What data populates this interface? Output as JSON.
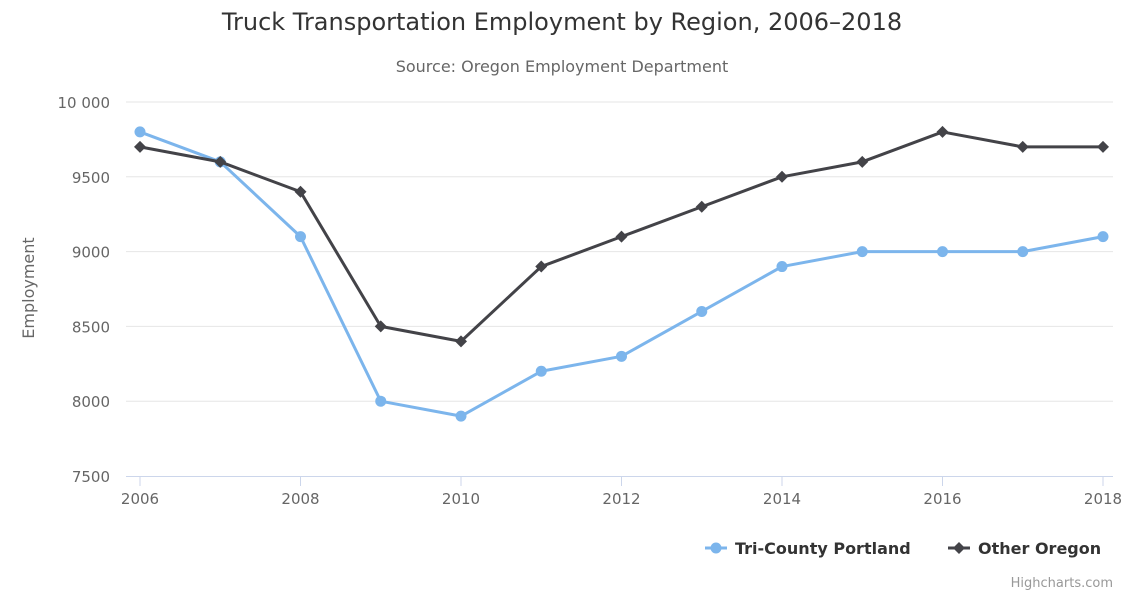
{
  "chart_data": {
    "type": "line",
    "title": "Truck Transportation Employment by Region, 2006–2018",
    "subtitle": "Source: Oregon Employment Department",
    "ylabel": "Employment",
    "xlabel": "",
    "x": [
      2006,
      2007,
      2008,
      2009,
      2010,
      2011,
      2012,
      2013,
      2014,
      2015,
      2016,
      2017,
      2018
    ],
    "xticks": [
      2006,
      2008,
      2010,
      2012,
      2014,
      2016,
      2018
    ],
    "xtick_labels": [
      "2006",
      "2008",
      "2010",
      "2012",
      "2014",
      "2016",
      "2018"
    ],
    "ylim": [
      7500,
      10000
    ],
    "yticks": [
      7500,
      8000,
      8500,
      9000,
      9500,
      10000
    ],
    "ytick_labels": [
      "7500",
      "8000",
      "8500",
      "9000",
      "9500",
      "10 000"
    ],
    "grid": true,
    "legend_position": "bottom-right",
    "series": [
      {
        "name": "Tri-County Portland",
        "color": "#7cb5ec",
        "marker": "circle",
        "values": [
          9800,
          9600,
          9100,
          8000,
          7900,
          8200,
          8300,
          8600,
          8900,
          9000,
          9000,
          9000,
          9100
        ]
      },
      {
        "name": "Other Oregon",
        "color": "#434348",
        "marker": "diamond",
        "values": [
          9700,
          9600,
          9400,
          8500,
          8400,
          8900,
          9100,
          9300,
          9500,
          9600,
          9800,
          9700,
          9700
        ]
      }
    ],
    "credits": "Highcharts.com"
  }
}
